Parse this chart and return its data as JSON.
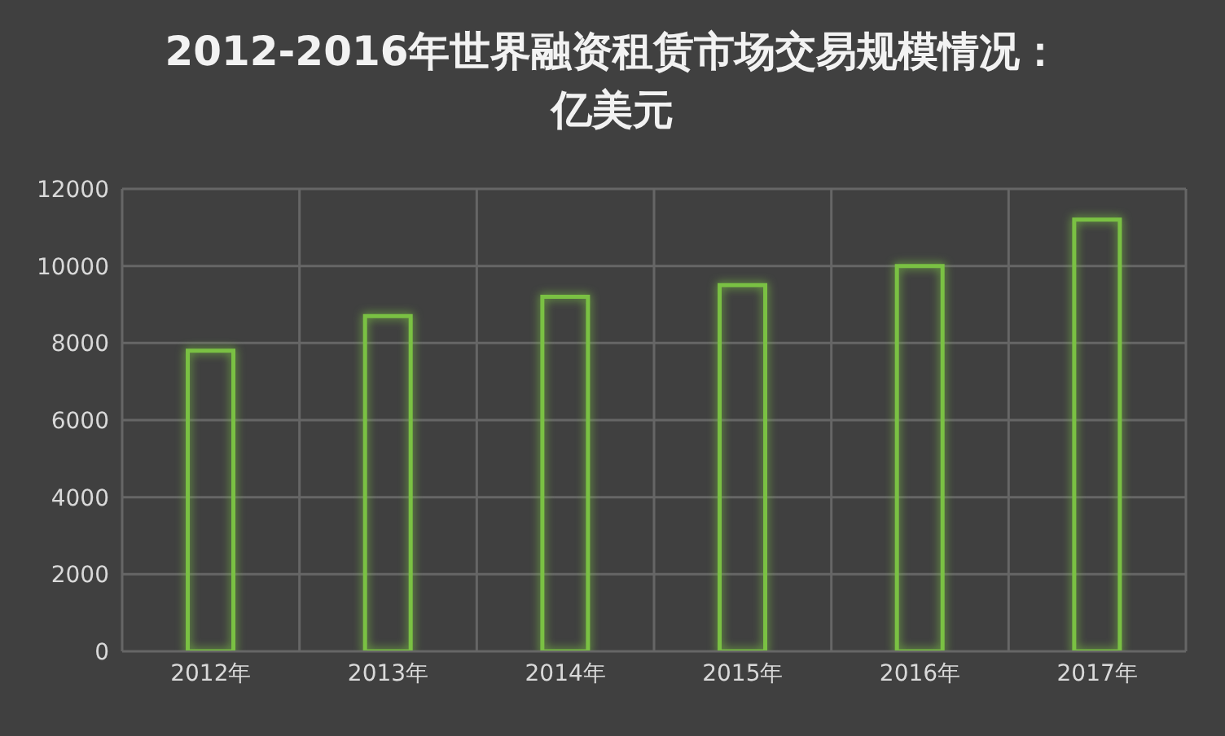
{
  "chart_data": {
    "type": "bar",
    "title": "2012-2016年世界融资租赁市场交易规模情况：亿美元",
    "categories": [
      "2012年",
      "2013年",
      "2014年",
      "2015年",
      "2016年",
      "2017年"
    ],
    "values": [
      7800,
      8700,
      9200,
      9500,
      10000,
      11200
    ],
    "color": "#7ac143",
    "ylim": [
      0,
      12000
    ],
    "yticks": [
      0,
      2000,
      4000,
      6000,
      8000,
      10000,
      12000
    ],
    "grid": true
  }
}
